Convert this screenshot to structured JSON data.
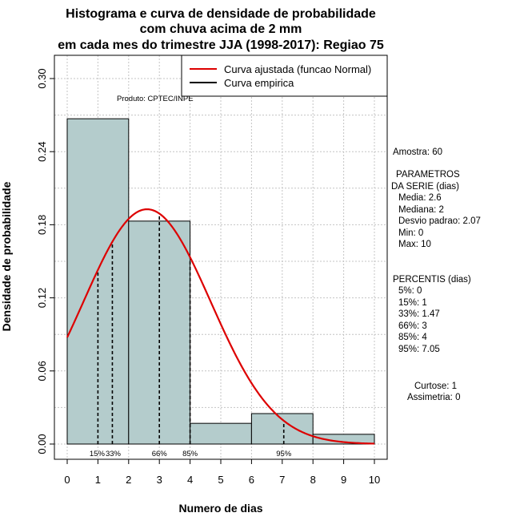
{
  "chart_data": {
    "type": "histogram",
    "title": [
      "Histograma e curva de densidade de probabilidade",
      "com chuva acima de 2 mm",
      "em cada mes do trimestre JJA (1998-2017): Regiao 75"
    ],
    "xlabel": "Numero de dias",
    "ylabel": "Densidade de probabilidade",
    "xlim": [
      0,
      10
    ],
    "ylim": [
      0,
      0.3
    ],
    "xticks": [
      "0",
      "1",
      "2",
      "3",
      "4",
      "5",
      "6",
      "7",
      "8",
      "9",
      "10"
    ],
    "yticks": [
      "0.00",
      "0.06",
      "0.12",
      "0.18",
      "0.24",
      "0.30"
    ],
    "bins": [
      {
        "x0": 0,
        "x1": 2,
        "density": 0.267
      },
      {
        "x0": 2,
        "x1": 4,
        "density": 0.183
      },
      {
        "x0": 4,
        "x1": 6,
        "density": 0.017
      },
      {
        "x0": 6,
        "x1": 8,
        "density": 0.025
      },
      {
        "x0": 8,
        "x1": 10,
        "density": 0.008
      }
    ],
    "normal_fit": {
      "mean": 2.6,
      "sd": 2.07
    },
    "legend": [
      {
        "label": "Curva ajustada (funcao Normal)",
        "color": "#dd0000"
      },
      {
        "label": "Curva empirica",
        "color": "#000000"
      }
    ],
    "percentile_lines": [
      {
        "label": "15%",
        "x": 1
      },
      {
        "label": "33%",
        "x": 1.47
      },
      {
        "label": "66%",
        "x": 3
      },
      {
        "label": "85%",
        "x": 4
      },
      {
        "label": "95%",
        "x": 7.05
      }
    ],
    "bar_color": "#b4cccc",
    "curve_color": "#dd0000",
    "grid": true
  },
  "source_label": "Produto: CPTEC/INPE",
  "stats": {
    "sample": "Amostra: 60",
    "params_title_1": "PARAMETROS",
    "params_title_2": "DA SERIE (dias)",
    "params": [
      "Media: 2.6",
      "Mediana: 2",
      "Desvio padrao: 2.07",
      "Min: 0",
      "Max: 10"
    ],
    "percentis_title": "PERCENTIS (dias)",
    "percentis": [
      "5%: 0",
      "15%: 1",
      "33%: 1.47",
      "66%: 3",
      "85%: 4",
      "95%: 7.05"
    ],
    "curtose": "Curtose: 1",
    "assimetria": "Assimetria: 0"
  }
}
